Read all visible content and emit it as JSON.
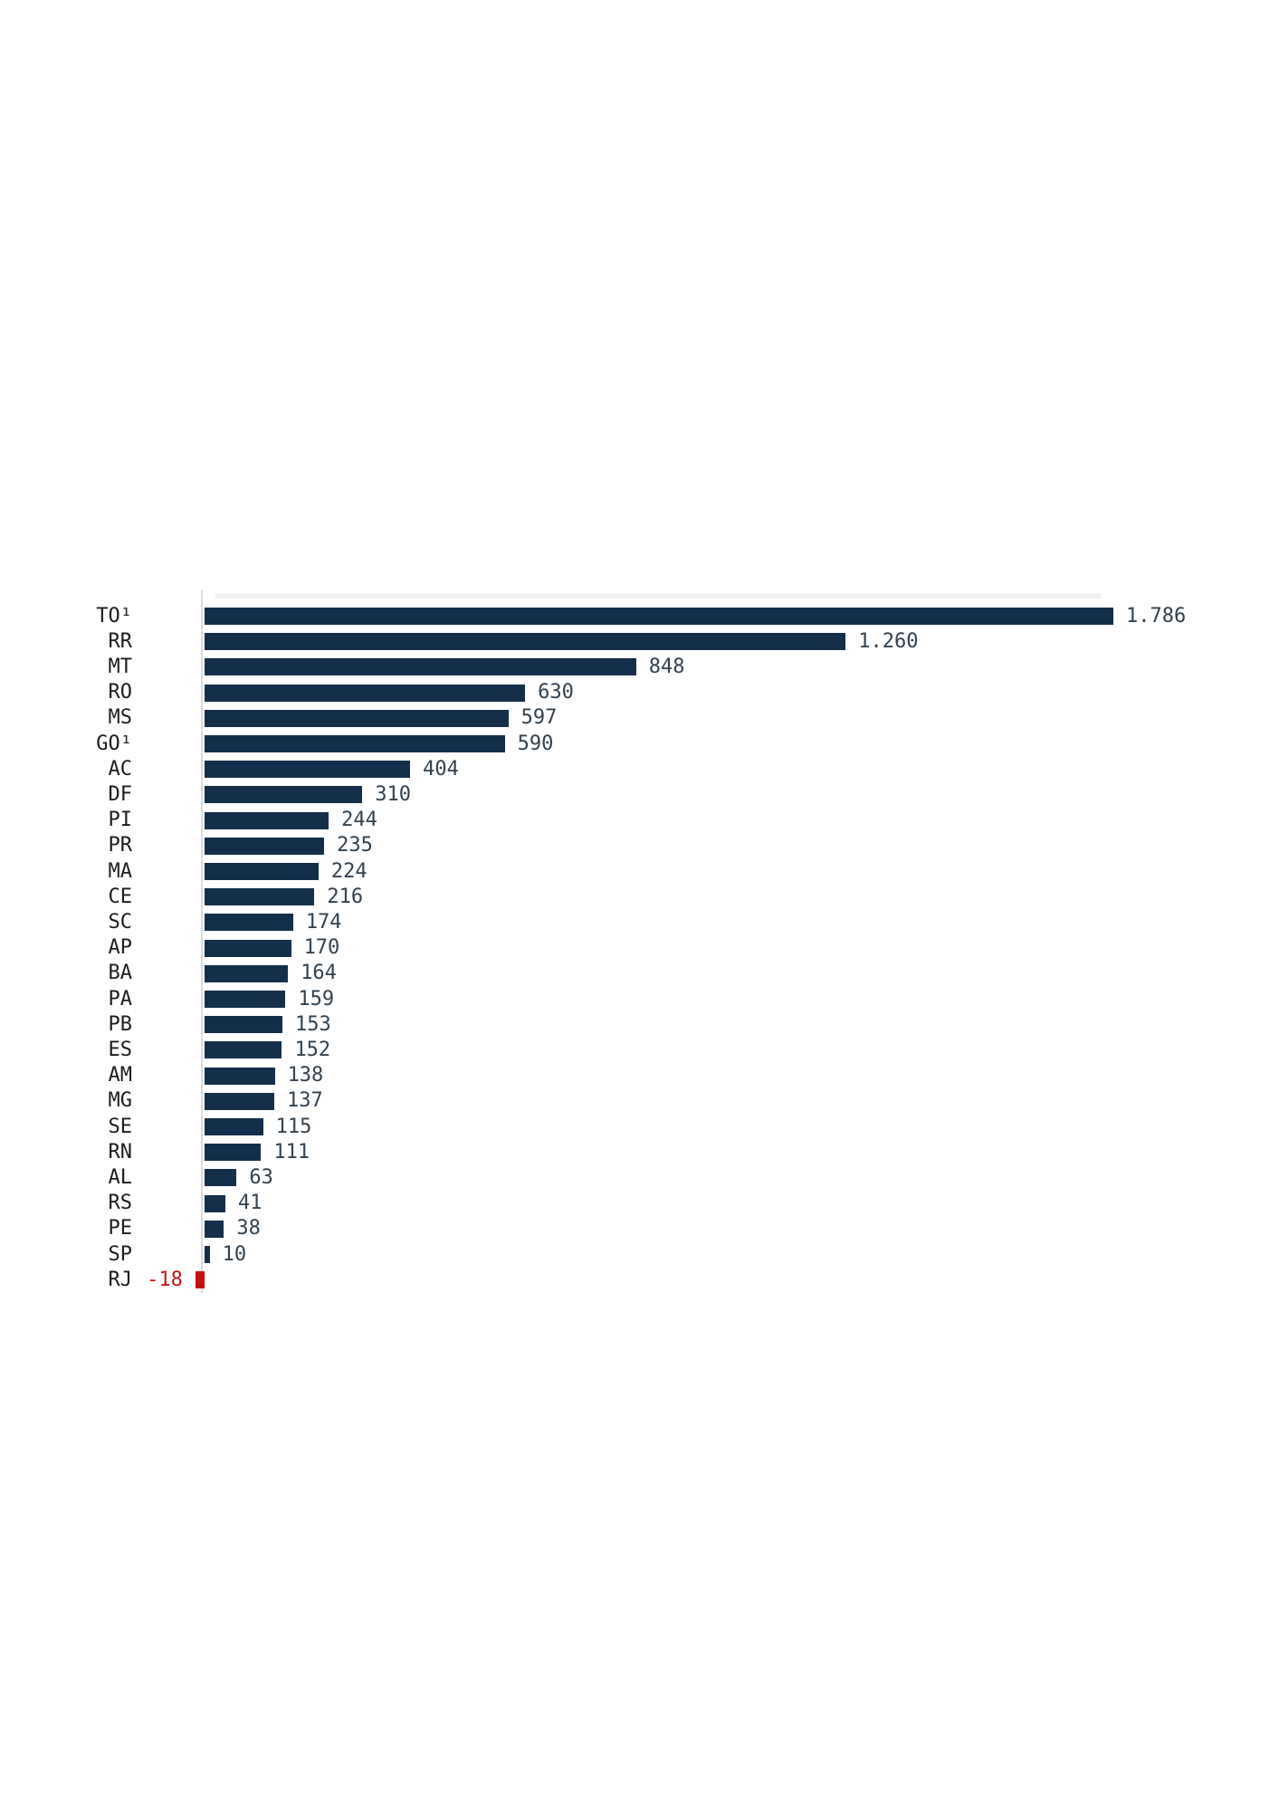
{
  "page": {
    "background": "#ffffff"
  },
  "chart_data": {
    "type": "bar",
    "orientation": "horizontal",
    "title": "",
    "xlabel": "",
    "ylabel": "",
    "xlim": [
      -18,
      1786
    ],
    "grid": false,
    "legend": false,
    "categories": [
      "TO¹",
      "RR",
      "MT",
      "RO",
      "MS",
      "GO¹",
      "AC",
      "DF",
      "PI",
      "PR",
      "MA",
      "CE",
      "SC",
      "AP",
      "BA",
      "PA",
      "PB",
      "ES",
      "AM",
      "MG",
      "SE",
      "RN",
      "AL",
      "RS",
      "PE",
      "SP",
      "RJ"
    ],
    "values": [
      1786,
      1260,
      848,
      630,
      597,
      590,
      404,
      310,
      244,
      235,
      224,
      216,
      174,
      170,
      164,
      159,
      153,
      152,
      138,
      137,
      115,
      111,
      63,
      41,
      38,
      10,
      -18
    ],
    "value_labels": [
      "1.786",
      "1.260",
      "848",
      "630",
      "597",
      "590",
      "404",
      "310",
      "244",
      "235",
      "224",
      "216",
      "174",
      "170",
      "164",
      "159",
      "153",
      "152",
      "138",
      "137",
      "115",
      "111",
      "63",
      "41",
      "38",
      "10",
      "-18"
    ],
    "colors": {
      "bar_positive": "#142F4B",
      "bar_negative": "#C51111",
      "category_label": "#1C1C20",
      "value_label": "#32414E",
      "value_label_negative": "#C41414",
      "axis_line": "#DADDDF",
      "ghost_band": "#F2F2F2"
    }
  }
}
